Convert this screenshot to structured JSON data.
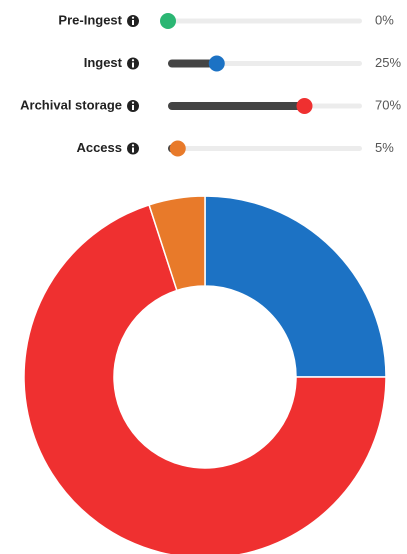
{
  "chart_data": {
    "type": "donut",
    "categories": [
      "Pre-Ingest",
      "Ingest",
      "Archival storage",
      "Access"
    ],
    "values": [
      0,
      25,
      70,
      5
    ],
    "value_labels": [
      "0%",
      "25%",
      "70%",
      "5%"
    ],
    "colors": [
      "#2bb673",
      "#1c72c4",
      "#ef3030",
      "#e87a2a"
    ]
  }
}
